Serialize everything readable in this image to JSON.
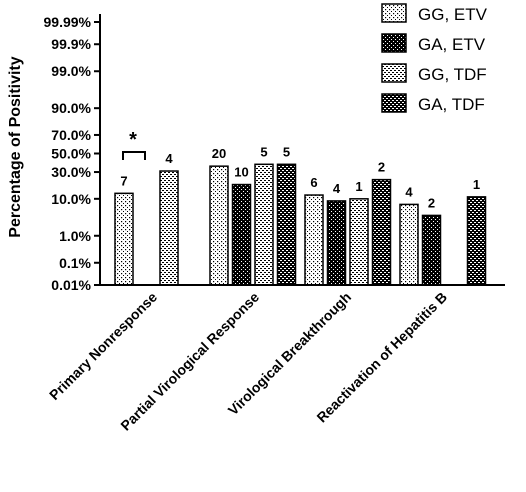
{
  "chart_data": {
    "type": "bar",
    "title": "",
    "xlabel": "",
    "ylabel": "Percentage of Positivity",
    "y_scale": "probability",
    "y_ticks": [
      "0.01%",
      "0.1%",
      "1.0%",
      "10.0%",
      "30.0%",
      "50.0%",
      "70.0%",
      "90.0%",
      "99.0%",
      "99.9%",
      "99.99%"
    ],
    "categories": [
      "Primary Nonresponse",
      "Partial Virological Response",
      "Virological Breakthrough",
      "Reactivation of Hepatitis B"
    ],
    "series": [
      {
        "name": "GG, ETV",
        "pattern": "dots-on-white",
        "values": [
          13,
          36,
          12,
          7.5
        ],
        "labels": [
          "7",
          "20",
          "6",
          "4"
        ]
      },
      {
        "name": "GA, ETV",
        "pattern": "white-dots-on-black",
        "values": [
          null,
          19,
          9,
          4
        ],
        "labels": [
          "",
          "10",
          "4",
          "2"
        ]
      },
      {
        "name": "GG, TDF",
        "pattern": "checker-light",
        "values": [
          31,
          38,
          10,
          null
        ],
        "labels": [
          "4",
          "5",
          "1",
          ""
        ]
      },
      {
        "name": "GA, TDF",
        "pattern": "checker-dark",
        "values": [
          null,
          38,
          23,
          11
        ],
        "labels": [
          "",
          "5",
          "2",
          "1"
        ]
      }
    ],
    "annotations": [
      {
        "text": "*",
        "type": "significance-bracket",
        "category": "Primary Nonresponse",
        "between": [
          "GG, ETV",
          "GG, TDF"
        ]
      }
    ],
    "legend_position": "top-right",
    "grid": false
  }
}
